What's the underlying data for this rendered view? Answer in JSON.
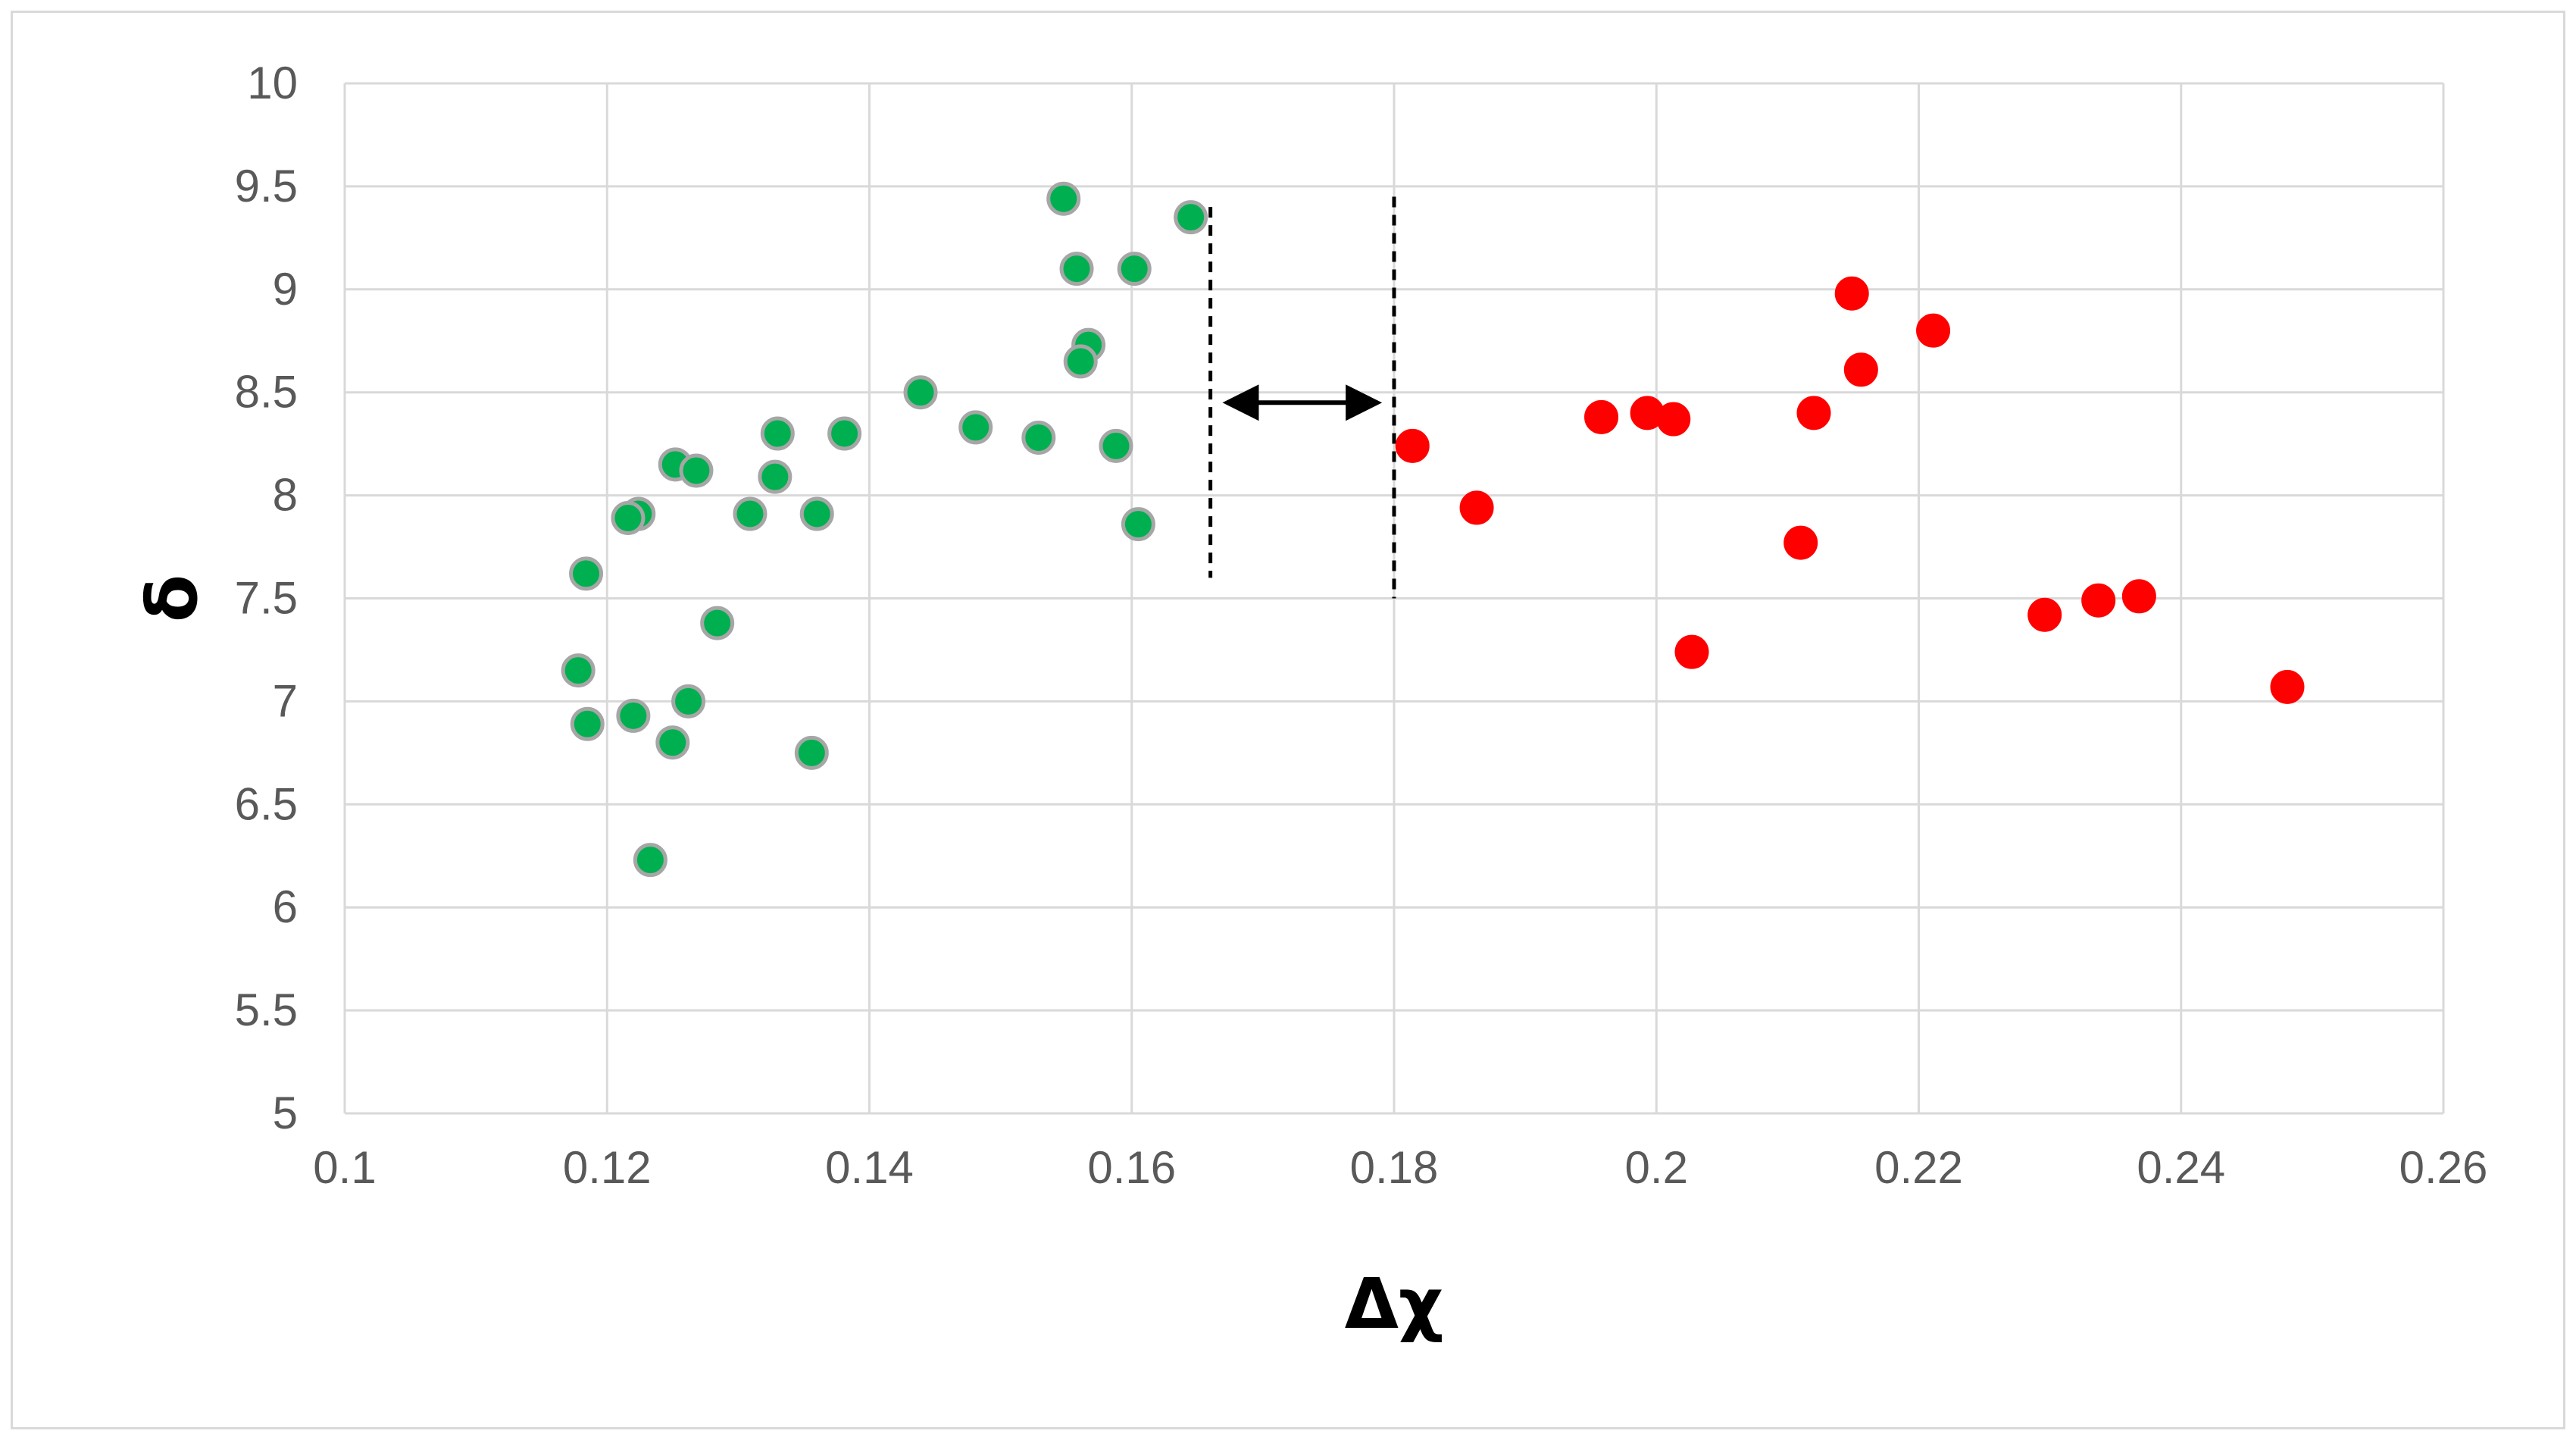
{
  "chart_data": {
    "type": "scatter",
    "title": "",
    "xlabel": "Δχ",
    "ylabel": "δ",
    "xlim": [
      0.1,
      0.26
    ],
    "ylim": [
      5,
      10
    ],
    "x_ticks": [
      0.1,
      0.12,
      0.14,
      0.16,
      0.18,
      0.2,
      0.22,
      0.24,
      0.26
    ],
    "x_tick_labels": [
      "0.1",
      "0.12",
      "0.14",
      "0.16",
      "0.18",
      "0.2",
      "0.22",
      "0.24",
      "0.26"
    ],
    "y_ticks": [
      5,
      5.5,
      6,
      6.5,
      7,
      7.5,
      8,
      8.5,
      9,
      9.5,
      10
    ],
    "y_tick_labels": [
      "5",
      "5.5",
      "6",
      "6.5",
      "7",
      "7.5",
      "8",
      "8.5",
      "9",
      "9.5",
      "10"
    ],
    "grid": true,
    "legend": "none",
    "series": [
      {
        "color": "#00b050",
        "edge_color": "#a6a6a6",
        "points": [
          [
            0.1548,
            9.44
          ],
          [
            0.1645,
            9.35
          ],
          [
            0.1558,
            9.1
          ],
          [
            0.1602,
            9.1
          ],
          [
            0.1567,
            8.73
          ],
          [
            0.1561,
            8.65
          ],
          [
            0.1439,
            8.5
          ],
          [
            0.1481,
            8.33
          ],
          [
            0.1529,
            8.28
          ],
          [
            0.1588,
            8.24
          ],
          [
            0.133,
            8.3
          ],
          [
            0.1381,
            8.3
          ],
          [
            0.1328,
            8.09
          ],
          [
            0.1252,
            8.15
          ],
          [
            0.1268,
            8.12
          ],
          [
            0.1224,
            7.91
          ],
          [
            0.1216,
            7.89
          ],
          [
            0.1309,
            7.91
          ],
          [
            0.136,
            7.91
          ],
          [
            0.1605,
            7.86
          ],
          [
            0.1184,
            7.62
          ],
          [
            0.1284,
            7.38
          ],
          [
            0.1178,
            7.15
          ],
          [
            0.1185,
            6.89
          ],
          [
            0.122,
            6.93
          ],
          [
            0.1262,
            7.0
          ],
          [
            0.125,
            6.8
          ],
          [
            0.1356,
            6.75
          ],
          [
            0.1233,
            6.23
          ]
        ]
      },
      {
        "color": "#ff0000",
        "edge_color": "#ff0000",
        "points": [
          [
            0.2149,
            8.98
          ],
          [
            0.2211,
            8.8
          ],
          [
            0.2156,
            8.61
          ],
          [
            0.1958,
            8.38
          ],
          [
            0.1993,
            8.4
          ],
          [
            0.2013,
            8.37
          ],
          [
            0.212,
            8.4
          ],
          [
            0.1814,
            8.24
          ],
          [
            0.1863,
            7.94
          ],
          [
            0.211,
            7.77
          ],
          [
            0.2027,
            7.24
          ],
          [
            0.2296,
            7.42
          ],
          [
            0.2337,
            7.49
          ],
          [
            0.2368,
            7.51
          ],
          [
            0.2481,
            7.07
          ]
        ]
      }
    ],
    "annotations": {
      "dashed_lines": [
        {
          "x": 0.166,
          "y_from": 7.6,
          "y_to": 9.4
        },
        {
          "x": 0.18,
          "y_from": 7.5,
          "y_to": 9.45
        }
      ],
      "double_arrow": {
        "x_from": 0.1668,
        "x_to": 0.1792,
        "y": 8.45
      }
    }
  }
}
